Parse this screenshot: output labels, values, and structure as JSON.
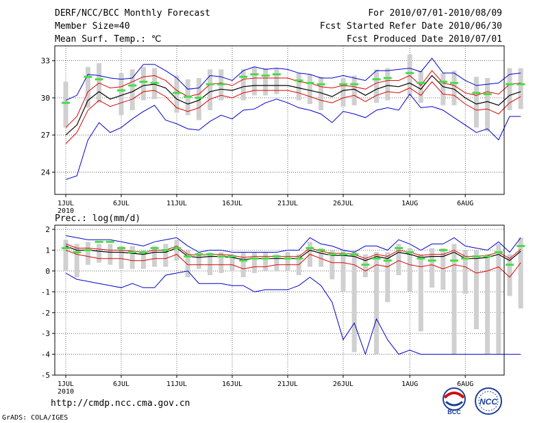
{
  "header": {
    "title": "DERF/NCC/BCC Monthly Forecast",
    "member_size": "Member Size=40",
    "variable": "Mean Surf. Temp.: ℃",
    "period": "For 2010/07/01-2010/08/09",
    "started": "Fcst Started Refer Date 2010/06/30",
    "produced": "Fcst Produced Date 2010/07/01"
  },
  "footer": {
    "url": "http://cmdp.ncc.cma.gov.cn",
    "grads": "GrADS: COLA/IGES",
    "logo_bcc": "BCC",
    "logo_ncc": "NCC"
  },
  "colors": {
    "mean": "#000000",
    "spread": "#dd0000",
    "envelope": "#0000cc",
    "obs": "#44dd44",
    "box": "#d0d0d0"
  },
  "chart_data": [
    {
      "type": "line",
      "title": "Mean Surf. Temp.: ℃",
      "ylim": [
        22.2,
        34.2
      ],
      "yticks": [
        24,
        27,
        30,
        33
      ],
      "xticks": [
        {
          "day": 1,
          "label": "1JUL",
          "sub": "2010"
        },
        {
          "day": 6,
          "label": "6JUL"
        },
        {
          "day": 11,
          "label": "11JUL"
        },
        {
          "day": 16,
          "label": "16JUL"
        },
        {
          "day": 21,
          "label": "21JUL"
        },
        {
          "day": 26,
          "label": "26JUL"
        },
        {
          "day": 32,
          "label": "1AUG"
        },
        {
          "day": 37,
          "label": "6AUG"
        }
      ],
      "series": [
        {
          "name": "max",
          "values": [
            29.8,
            30.2,
            31.9,
            31.8,
            31.6,
            31.5,
            31.6,
            32.7,
            32.7,
            32.2,
            31.6,
            30.7,
            30.8,
            31.8,
            31.7,
            31.4,
            32.2,
            32.5,
            32.3,
            32.4,
            32.3,
            32.0,
            31.9,
            31.6,
            31.6,
            31.8,
            31.6,
            31.4,
            32.2,
            32.2,
            32.3,
            32.4,
            32.1,
            33.2,
            32.0,
            32.0,
            31.4,
            31.0,
            31.1,
            31.2,
            31.9,
            32.0
          ]
        },
        {
          "name": "upper",
          "values": [
            27.6,
            28.5,
            30.5,
            31.2,
            30.8,
            30.9,
            31.3,
            31.7,
            31.8,
            31.4,
            30.6,
            30.1,
            30.3,
            31.1,
            31.2,
            31.0,
            31.5,
            31.6,
            31.6,
            31.6,
            31.6,
            31.3,
            31.2,
            30.9,
            30.8,
            31.0,
            30.9,
            30.7,
            31.2,
            31.4,
            31.4,
            31.8,
            31.0,
            32.2,
            31.2,
            31.0,
            30.4,
            30.2,
            30.5,
            30.3,
            31.1,
            31.2
          ]
        },
        {
          "name": "mean",
          "values": [
            27.0,
            27.8,
            29.8,
            30.5,
            29.9,
            30.2,
            30.5,
            31.0,
            31.1,
            30.8,
            29.9,
            29.5,
            29.8,
            30.5,
            30.7,
            30.6,
            30.9,
            31.0,
            31.0,
            31.0,
            31.0,
            30.8,
            30.6,
            30.4,
            30.1,
            30.6,
            30.7,
            30.2,
            30.7,
            31.0,
            30.9,
            31.2,
            30.7,
            31.8,
            30.9,
            30.7,
            30.0,
            29.5,
            29.7,
            29.4,
            30.2,
            30.5
          ]
        },
        {
          "name": "lower",
          "values": [
            26.3,
            27.2,
            29.0,
            29.8,
            29.3,
            29.6,
            29.9,
            30.5,
            30.6,
            30.1,
            29.2,
            28.9,
            29.2,
            29.9,
            30.2,
            30.0,
            30.4,
            30.6,
            30.6,
            30.6,
            30.6,
            30.4,
            30.1,
            29.8,
            29.6,
            30.0,
            30.2,
            29.7,
            30.2,
            30.5,
            30.4,
            30.8,
            30.2,
            31.3,
            30.3,
            30.2,
            29.5,
            29.0,
            29.1,
            28.7,
            29.6,
            30.1
          ]
        },
        {
          "name": "min",
          "values": [
            23.4,
            23.7,
            26.6,
            28.0,
            27.2,
            27.6,
            28.3,
            28.9,
            29.4,
            28.2,
            27.9,
            27.5,
            27.4,
            28.1,
            28.6,
            28.3,
            29.0,
            29.1,
            29.6,
            29.9,
            29.6,
            29.2,
            29.0,
            28.7,
            28.0,
            28.9,
            28.7,
            28.4,
            29.0,
            29.2,
            29.0,
            30.3,
            29.2,
            29.3,
            29.0,
            28.4,
            27.8,
            27.2,
            27.5,
            26.6,
            28.5,
            28.5
          ]
        },
        {
          "name": "obs",
          "values": [
            29.6,
            null,
            31.7,
            31.5,
            null,
            30.6,
            31.0,
            31.3,
            31.2,
            null,
            30.4,
            30.1,
            30.0,
            31.1,
            31.1,
            null,
            31.7,
            31.9,
            31.8,
            31.9,
            null,
            31.4,
            31.2,
            31.1,
            null,
            31.1,
            31.1,
            null,
            31.5,
            31.6,
            null,
            32.0,
            31.2,
            null,
            31.3,
            31.2,
            null,
            30.4,
            30.3,
            null,
            31.1,
            31.1
          ]
        }
      ],
      "boxes": {
        "hi": [
          31.3,
          null,
          32.5,
          32.8,
          null,
          32.0,
          32.3,
          32.5,
          32.4,
          null,
          31.8,
          31.5,
          31.6,
          32.3,
          32.3,
          null,
          32.3,
          32.5,
          32.4,
          32.4,
          null,
          32.0,
          31.9,
          31.7,
          null,
          31.6,
          31.8,
          null,
          32.3,
          32.4,
          null,
          33.5,
          32.2,
          null,
          32.0,
          32.2,
          null,
          31.7,
          31.6,
          null,
          32.4,
          32.4
        ],
        "lo": [
          27.6,
          null,
          29.2,
          29.6,
          null,
          28.6,
          29.0,
          29.8,
          29.9,
          null,
          28.8,
          28.6,
          28.2,
          29.0,
          29.8,
          null,
          29.8,
          30.2,
          30.2,
          30.3,
          null,
          29.8,
          29.5,
          29.0,
          null,
          29.3,
          29.4,
          null,
          29.6,
          29.8,
          null,
          30.2,
          29.6,
          null,
          29.4,
          29.4,
          null,
          27.6,
          27.3,
          null,
          29.0,
          29.1
        ]
      }
    },
    {
      "type": "line",
      "title": "Prec.: log(mm/d)",
      "ylim": [
        -5,
        2.2
      ],
      "yticks": [
        -5,
        -4,
        -3,
        -2,
        -1,
        0,
        1,
        2
      ],
      "xticks": [
        {
          "day": 1,
          "label": "1JUL",
          "sub": "2010"
        },
        {
          "day": 6,
          "label": "6JUL"
        },
        {
          "day": 11,
          "label": "11JUL"
        },
        {
          "day": 16,
          "label": "16JUL"
        },
        {
          "day": 21,
          "label": "21JUL"
        },
        {
          "day": 26,
          "label": "26JUL"
        },
        {
          "day": 32,
          "label": "1AUG"
        },
        {
          "day": 37,
          "label": "6AUG"
        }
      ],
      "series": [
        {
          "name": "max",
          "values": [
            1.7,
            1.6,
            1.5,
            1.5,
            1.5,
            1.4,
            1.3,
            1.2,
            1.4,
            1.5,
            1.6,
            1.2,
            0.9,
            1.0,
            1.0,
            0.9,
            0.9,
            0.9,
            0.9,
            0.9,
            1.0,
            1.0,
            1.6,
            1.3,
            1.2,
            1.0,
            0.9,
            1.2,
            1.2,
            1.0,
            1.5,
            1.3,
            1.0,
            1.3,
            1.3,
            1.6,
            1.2,
            1.1,
            1.0,
            1.4,
            0.9,
            1.6
          ]
        },
        {
          "name": "upper",
          "values": [
            1.3,
            1.1,
            1.1,
            1.05,
            1.0,
            1.0,
            0.95,
            0.9,
            1.0,
            1.0,
            1.2,
            0.8,
            0.75,
            0.8,
            0.8,
            0.75,
            0.65,
            0.7,
            0.7,
            0.7,
            0.7,
            0.7,
            1.1,
            0.95,
            0.85,
            0.85,
            0.8,
            0.6,
            0.8,
            0.7,
            1.0,
            0.9,
            0.75,
            0.8,
            0.8,
            1.0,
            0.7,
            0.7,
            0.75,
            0.9,
            0.6,
            1.05
          ]
        },
        {
          "name": "mean",
          "values": [
            1.2,
            1.0,
            1.0,
            0.95,
            0.9,
            0.9,
            0.85,
            0.8,
            0.9,
            0.9,
            1.1,
            0.7,
            0.65,
            0.7,
            0.7,
            0.65,
            0.55,
            0.6,
            0.6,
            0.6,
            0.6,
            0.6,
            1.0,
            0.85,
            0.75,
            0.75,
            0.7,
            0.5,
            0.7,
            0.6,
            0.9,
            0.8,
            0.65,
            0.7,
            0.7,
            0.9,
            0.6,
            0.6,
            0.65,
            0.8,
            0.5,
            0.95
          ]
        },
        {
          "name": "lower",
          "values": [
            1.0,
            0.8,
            0.7,
            0.6,
            0.6,
            0.6,
            0.5,
            0.5,
            0.6,
            0.6,
            0.8,
            0.3,
            0.3,
            0.3,
            0.3,
            0.3,
            0.1,
            0.2,
            0.2,
            0.3,
            0.3,
            0.3,
            0.8,
            0.6,
            0.4,
            0.4,
            0.3,
            0.0,
            0.3,
            0.2,
            0.5,
            0.3,
            0.2,
            0.3,
            0.1,
            0.3,
            0.2,
            -0.1,
            0.0,
            0.2,
            -0.3,
            0.4
          ]
        },
        {
          "name": "min",
          "values": [
            -0.1,
            -0.4,
            -0.5,
            -0.6,
            -0.7,
            -0.8,
            -0.6,
            -0.8,
            -0.8,
            -0.2,
            -0.1,
            0.0,
            -0.6,
            -0.6,
            -0.6,
            -0.7,
            -0.7,
            -1.0,
            -0.9,
            -0.9,
            -0.9,
            -0.7,
            -0.3,
            -0.7,
            -1.5,
            -3.3,
            -2.5,
            -4.0,
            -2.3,
            -3.3,
            -4.0,
            -3.8,
            -4.0,
            -4.0,
            -4.0,
            -4.0,
            -4.0,
            -4.0,
            -4.0,
            -4.0,
            -4.0,
            -4.0
          ]
        },
        {
          "name": "obs",
          "values": [
            1.1,
            0.9,
            1.0,
            1.4,
            1.4,
            1.1,
            0.9,
            0.9,
            1.1,
            1.0,
            1.1,
            0.7,
            0.8,
            0.8,
            0.7,
            0.7,
            0.5,
            0.6,
            0.6,
            0.7,
            0.6,
            0.6,
            1.1,
            1.0,
            0.8,
            0.8,
            0.8,
            0.3,
            0.6,
            0.5,
            1.1,
            0.9,
            0.6,
            0.5,
            1.0,
            0.5,
            0.6,
            0.7,
            0.7,
            0.9,
            0.3,
            1.2
          ]
        }
      ],
      "boxes": {
        "hi": [
          1.5,
          1.3,
          1.4,
          1.3,
          1.3,
          1.2,
          1.2,
          1.0,
          1.2,
          1.3,
          1.5,
          1.0,
          0.9,
          0.9,
          0.9,
          0.8,
          0.9,
          0.9,
          0.9,
          0.8,
          0.9,
          0.8,
          1.4,
          1.1,
          1.0,
          1.0,
          1.0,
          0.8,
          0.9,
          0.9,
          1.3,
          1.1,
          0.8,
          1.1,
          1.1,
          1.3,
          1.0,
          1.0,
          0.8,
          1.3,
          0.8,
          1.6
        ],
        "lo": [
          0.0,
          -0.3,
          0.3,
          0.4,
          0.3,
          0.1,
          0.1,
          0.1,
          0.2,
          0.2,
          0.5,
          -0.3,
          0.1,
          -0.2,
          -0.1,
          0.0,
          -0.3,
          -0.1,
          0.0,
          0.0,
          0.0,
          -0.2,
          0.2,
          0.2,
          -0.4,
          -1.0,
          -3.9,
          -0.3,
          -4.0,
          -1.5,
          -0.2,
          -1.0,
          -2.9,
          -0.8,
          -0.9,
          -4.0,
          -1.1,
          -2.8,
          -4.0,
          -4.0,
          -1.2,
          -1.8
        ]
      }
    }
  ]
}
